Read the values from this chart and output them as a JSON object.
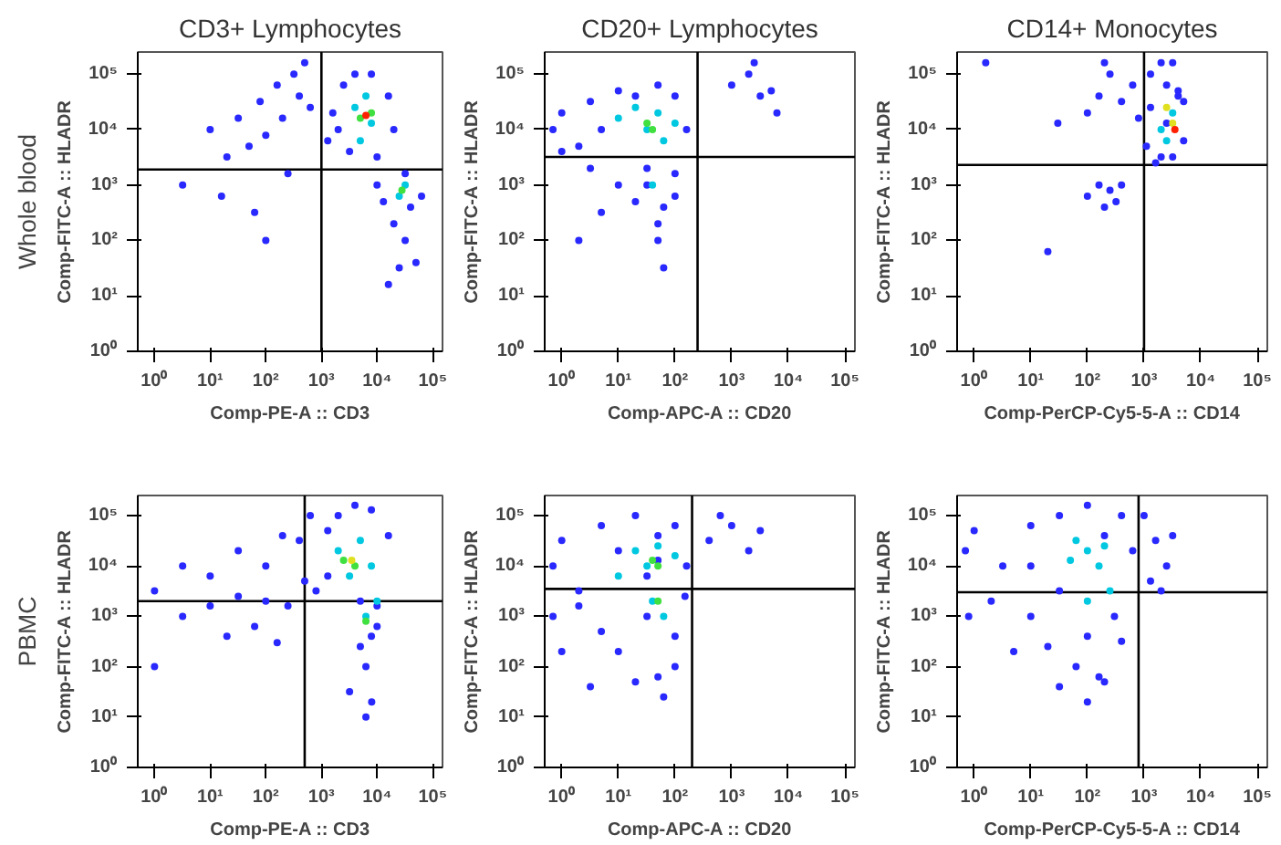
{
  "chart_data": [
    {
      "type": "scatter",
      "title": "CD3+ Lymphocytes",
      "annotations": [
        "Whole blood"
      ],
      "xlabel": "Comp-PE-A :: CD3",
      "ylabel": "Comp-FITC-A :: HLADR",
      "log": "xy",
      "grid": false,
      "marker": "circle",
      "xlim": [
        0.5,
        150000
      ],
      "ylim": [
        1,
        250000
      ],
      "xticks": [
        {
          "value": 1,
          "label": "10⁰"
        },
        {
          "value": 10,
          "label": "10¹"
        },
        {
          "value": 100,
          "label": "10²"
        },
        {
          "value": 1000,
          "label": "10³"
        },
        {
          "value": 10000,
          "label": "10⁴"
        },
        {
          "value": 100000,
          "label": "10⁵"
        }
      ],
      "yticks": [
        {
          "value": 1,
          "label": "10⁰"
        },
        {
          "value": 10,
          "label": "10¹"
        },
        {
          "value": 100,
          "label": "10²"
        },
        {
          "value": 1000,
          "label": "10³"
        },
        {
          "value": 10000,
          "label": "10⁴"
        },
        {
          "value": 100000,
          "label": "10⁵"
        }
      ],
      "ref_lines": [
        {
          "axis": "x",
          "value": 1000,
          "color": "#000000"
        },
        {
          "axis": "y",
          "value": 1900,
          "color": "#000000"
        }
      ],
      "series": [
        {
          "color": "#2828ff",
          "x": [
            10,
            20,
            32,
            50,
            79,
            100,
            160,
            200,
            320,
            400,
            500,
            630,
            16,
            63,
            250,
            3.2,
            100,
            1600,
            2500,
            4000,
            7900,
            16000,
            20000,
            1300,
            3200,
            10000,
            2000,
            10000,
            32000,
            40000,
            20000,
            32000,
            50000,
            25000,
            16000,
            63000,
            13000
          ],
          "values": [
            10000,
            3200,
            16000,
            5000,
            32000,
            7900,
            63000,
            16000,
            100000,
            40000,
            160000,
            25000,
            630,
            320,
            1600,
            1000,
            100,
            20000,
            63000,
            100000,
            100000,
            40000,
            10000,
            6300,
            4000,
            3200,
            10000,
            1000,
            1600,
            400,
            200,
            100,
            40,
            32,
            16,
            630,
            500
          ]
        },
        {
          "color": "#00c8e0",
          "x": [
            4000,
            6300,
            7900,
            5000,
            25000,
            32000
          ],
          "values": [
            25000,
            40000,
            13000,
            6300,
            630,
            1000
          ]
        },
        {
          "color": "#40e040",
          "x": [
            5000,
            7900,
            28000
          ],
          "values": [
            16000,
            20000,
            800
          ]
        },
        {
          "color": "#ff2000",
          "x": [
            6300
          ],
          "values": [
            18000
          ]
        }
      ]
    },
    {
      "type": "scatter",
      "title": "CD20+ Lymphocytes",
      "xlabel": "Comp-APC-A :: CD20",
      "ylabel": "Comp-FITC-A :: HLADR",
      "log": "xy",
      "grid": false,
      "marker": "circle",
      "xlim": [
        0.5,
        150000
      ],
      "ylim": [
        1,
        250000
      ],
      "xticks": [
        {
          "value": 1,
          "label": "10⁰"
        },
        {
          "value": 10,
          "label": "10¹"
        },
        {
          "value": 100,
          "label": "10²"
        },
        {
          "value": 1000,
          "label": "10³"
        },
        {
          "value": 10000,
          "label": "10⁴"
        },
        {
          "value": 100000,
          "label": "10⁵"
        }
      ],
      "yticks": [
        {
          "value": 1,
          "label": "10⁰"
        },
        {
          "value": 10,
          "label": "10¹"
        },
        {
          "value": 100,
          "label": "10²"
        },
        {
          "value": 1000,
          "label": "10³"
        },
        {
          "value": 10000,
          "label": "10⁴"
        },
        {
          "value": 100000,
          "label": "10⁵"
        }
      ],
      "ref_lines": [
        {
          "axis": "x",
          "value": 250,
          "color": "#000000"
        },
        {
          "axis": "y",
          "value": 3200,
          "color": "#000000"
        }
      ],
      "series": [
        {
          "color": "#2828ff",
          "x": [
            0.7,
            1,
            2,
            3.2,
            5,
            10,
            20,
            50,
            100,
            160,
            1,
            3.2,
            10,
            32,
            100,
            5,
            20,
            50,
            100,
            32,
            63,
            50,
            1000,
            2000,
            3200,
            5000,
            2500,
            6300,
            2,
            63
          ],
          "values": [
            10000,
            20000,
            5000,
            32000,
            10000,
            50000,
            40000,
            63000,
            40000,
            10000,
            4000,
            2000,
            1000,
            2000,
            1600,
            320,
            500,
            200,
            630,
            1000,
            400,
            100,
            63000,
            100000,
            40000,
            50000,
            160000,
            20000,
            100,
            32
          ]
        },
        {
          "color": "#00c8e0",
          "x": [
            10,
            20,
            32,
            50,
            63,
            100,
            40
          ],
          "values": [
            16000,
            25000,
            10000,
            20000,
            6300,
            13000,
            1000
          ]
        },
        {
          "color": "#40e040",
          "x": [
            32,
            40
          ],
          "values": [
            13000,
            10000
          ]
        }
      ]
    },
    {
      "type": "scatter",
      "title": "CD14+ Monocytes",
      "xlabel": "Comp-PerCP-Cy5-5-A :: CD14",
      "ylabel": "Comp-FITC-A :: HLADR",
      "log": "xy",
      "grid": false,
      "marker": "circle",
      "xlim": [
        0.5,
        150000
      ],
      "ylim": [
        1,
        250000
      ],
      "xticks": [
        {
          "value": 1,
          "label": "10⁰"
        },
        {
          "value": 10,
          "label": "10¹"
        },
        {
          "value": 100,
          "label": "10²"
        },
        {
          "value": 1000,
          "label": "10³"
        },
        {
          "value": 10000,
          "label": "10⁴"
        },
        {
          "value": 100000,
          "label": "10⁵"
        }
      ],
      "yticks": [
        {
          "value": 1,
          "label": "10⁰"
        },
        {
          "value": 10,
          "label": "10¹"
        },
        {
          "value": 100,
          "label": "10²"
        },
        {
          "value": 1000,
          "label": "10³"
        },
        {
          "value": 10000,
          "label": "10⁴"
        },
        {
          "value": 100000,
          "label": "10⁵"
        }
      ],
      "ref_lines": [
        {
          "axis": "x",
          "value": 1000,
          "color": "#000000"
        },
        {
          "axis": "y",
          "value": 2300,
          "color": "#000000"
        }
      ],
      "series": [
        {
          "color": "#2828ff",
          "x": [
            1100,
            1300,
            2000,
            2500,
            3200,
            4000,
            5000,
            1600,
            2000,
            3200,
            4000,
            5000,
            1300,
            2500,
            30,
            100,
            160,
            250,
            400,
            630,
            800,
            200,
            100,
            160,
            250,
            320,
            400,
            200,
            20,
            1.6
          ],
          "values": [
            5000,
            100000,
            160000,
            63000,
            160000,
            50000,
            32000,
            2500,
            3200,
            3200,
            40000,
            6300,
            25000,
            13000,
            13000,
            20000,
            40000,
            100000,
            32000,
            63000,
            16000,
            160000,
            630,
            1000,
            800,
            500,
            1000,
            400,
            63,
            160000
          ]
        },
        {
          "color": "#00c8e0",
          "x": [
            2000,
            3200,
            2500
          ],
          "values": [
            10000,
            20000,
            6300
          ]
        },
        {
          "color": "#e0e020",
          "x": [
            3200,
            2500
          ],
          "values": [
            13000,
            25000
          ]
        },
        {
          "color": "#ff2000",
          "x": [
            3500
          ],
          "values": [
            10000
          ]
        }
      ]
    },
    {
      "type": "scatter",
      "annotations": [
        "PBMC"
      ],
      "xlabel": "Comp-PE-A :: CD3",
      "ylabel": "Comp-FITC-A :: HLADR",
      "log": "xy",
      "grid": false,
      "marker": "circle",
      "xlim": [
        0.5,
        150000
      ],
      "ylim": [
        1,
        250000
      ],
      "xticks": [
        {
          "value": 1,
          "label": "10⁰"
        },
        {
          "value": 10,
          "label": "10¹"
        },
        {
          "value": 100,
          "label": "10²"
        },
        {
          "value": 1000,
          "label": "10³"
        },
        {
          "value": 10000,
          "label": "10⁴"
        },
        {
          "value": 100000,
          "label": "10⁵"
        }
      ],
      "yticks": [
        {
          "value": 1,
          "label": "10⁰"
        },
        {
          "value": 10,
          "label": "10¹"
        },
        {
          "value": 100,
          "label": "10²"
        },
        {
          "value": 1000,
          "label": "10³"
        },
        {
          "value": 10000,
          "label": "10⁴"
        },
        {
          "value": 100000,
          "label": "10⁵"
        }
      ],
      "ref_lines": [
        {
          "axis": "x",
          "value": 500,
          "color": "#000000"
        },
        {
          "axis": "y",
          "value": 2000,
          "color": "#000000"
        }
      ],
      "series": [
        {
          "color": "#2828ff",
          "x": [
            1,
            3.2,
            10,
            32,
            100,
            200,
            400,
            630,
            3.2,
            10,
            32,
            100,
            250,
            500,
            20,
            63,
            160,
            1,
            800,
            1300,
            2000,
            4000,
            7900,
            16000,
            1300,
            5000,
            10000,
            7900,
            6300,
            3200,
            8000,
            6300,
            5000,
            10000
          ],
          "values": [
            3200,
            10000,
            6300,
            20000,
            10000,
            40000,
            32000,
            100000,
            1000,
            1600,
            2500,
            2000,
            1600,
            5000,
            400,
            630,
            300,
            100,
            3200,
            50000,
            100000,
            160000,
            130000,
            40000,
            6300,
            2000,
            1600,
            400,
            100,
            32,
            20,
            10,
            250,
            630
          ]
        },
        {
          "color": "#00c8e0",
          "x": [
            2000,
            5000,
            7900,
            6300,
            10000,
            3200
          ],
          "values": [
            20000,
            32000,
            10000,
            1000,
            2000,
            6300
          ]
        },
        {
          "color": "#40e040",
          "x": [
            2500,
            4000,
            6300
          ],
          "values": [
            13000,
            10000,
            800
          ]
        },
        {
          "color": "#e0e020",
          "x": [
            3500
          ],
          "values": [
            13000
          ]
        }
      ]
    },
    {
      "type": "scatter",
      "xlabel": "Comp-APC-A :: CD20",
      "ylabel": "Comp-FITC-A :: HLADR",
      "log": "xy",
      "grid": false,
      "marker": "circle",
      "xlim": [
        0.5,
        150000
      ],
      "ylim": [
        1,
        250000
      ],
      "xticks": [
        {
          "value": 1,
          "label": "10⁰"
        },
        {
          "value": 10,
          "label": "10¹"
        },
        {
          "value": 100,
          "label": "10²"
        },
        {
          "value": 1000,
          "label": "10³"
        },
        {
          "value": 10000,
          "label": "10⁴"
        },
        {
          "value": 100000,
          "label": "10⁵"
        }
      ],
      "yticks": [
        {
          "value": 1,
          "label": "10⁰"
        },
        {
          "value": 10,
          "label": "10¹"
        },
        {
          "value": 100,
          "label": "10²"
        },
        {
          "value": 1000,
          "label": "10³"
        },
        {
          "value": 10000,
          "label": "10⁴"
        },
        {
          "value": 100000,
          "label": "10⁵"
        }
      ],
      "ref_lines": [
        {
          "axis": "x",
          "value": 200,
          "color": "#000000"
        },
        {
          "axis": "y",
          "value": 3500,
          "color": "#000000"
        }
      ],
      "series": [
        {
          "color": "#2828ff",
          "x": [
            0.7,
            1,
            2,
            5,
            10,
            20,
            50,
            100,
            160,
            0.7,
            2,
            5,
            10,
            32,
            100,
            150,
            1,
            3.2,
            20,
            50,
            100,
            63,
            32,
            50,
            400,
            1000,
            2000,
            3200,
            630
          ],
          "values": [
            10000,
            32000,
            3200,
            63000,
            20000,
            100000,
            40000,
            63000,
            10000,
            1000,
            1600,
            500,
            200,
            1000,
            400,
            2500,
            200,
            40,
            50,
            63,
            100,
            25,
            6300,
            13000,
            32000,
            63000,
            20000,
            50000,
            100000
          ]
        },
        {
          "color": "#00c8e0",
          "x": [
            20,
            32,
            50,
            100,
            40,
            63,
            10
          ],
          "values": [
            20000,
            10000,
            25000,
            16000,
            2000,
            1000,
            6300
          ]
        },
        {
          "color": "#40e040",
          "x": [
            40,
            50,
            50
          ],
          "values": [
            13000,
            10000,
            2000
          ]
        }
      ]
    },
    {
      "type": "scatter",
      "xlabel": "Comp-PerCP-Cy5-5-A :: CD14",
      "ylabel": "Comp-FITC-A :: HLADR",
      "log": "xy",
      "grid": false,
      "marker": "circle",
      "xlim": [
        0.5,
        150000
      ],
      "ylim": [
        1,
        250000
      ],
      "xticks": [
        {
          "value": 1,
          "label": "10⁰"
        },
        {
          "value": 10,
          "label": "10¹"
        },
        {
          "value": 100,
          "label": "10²"
        },
        {
          "value": 1000,
          "label": "10³"
        },
        {
          "value": 10000,
          "label": "10⁴"
        },
        {
          "value": 100000,
          "label": "10⁵"
        }
      ],
      "yticks": [
        {
          "value": 1,
          "label": "10⁰"
        },
        {
          "value": 10,
          "label": "10¹"
        },
        {
          "value": 100,
          "label": "10²"
        },
        {
          "value": 1000,
          "label": "10³"
        },
        {
          "value": 10000,
          "label": "10⁴"
        },
        {
          "value": 100000,
          "label": "10⁵"
        }
      ],
      "ref_lines": [
        {
          "axis": "x",
          "value": 800,
          "color": "#000000"
        },
        {
          "axis": "y",
          "value": 3000,
          "color": "#000000"
        }
      ],
      "series": [
        {
          "color": "#2828ff",
          "x": [
            0.7,
            1,
            3.2,
            10,
            32,
            100,
            200,
            400,
            630,
            2,
            10,
            32,
            100,
            300,
            5,
            20,
            63,
            160,
            400,
            32,
            100,
            200,
            1000,
            1600,
            2500,
            3200,
            1300,
            2000,
            0.8,
            10
          ],
          "values": [
            20000,
            50000,
            10000,
            63000,
            100000,
            160000,
            40000,
            100000,
            20000,
            2000,
            1000,
            3200,
            400,
            1000,
            200,
            250,
            100,
            63,
            320,
            40,
            20,
            50,
            100000,
            32000,
            10000,
            40000,
            5000,
            3200,
            1000,
            10000
          ]
        },
        {
          "color": "#00c8e0",
          "x": [
            50,
            100,
            160,
            200,
            63,
            250,
            100
          ],
          "values": [
            13000,
            20000,
            10000,
            25000,
            32000,
            3200,
            2000
          ]
        }
      ]
    }
  ]
}
